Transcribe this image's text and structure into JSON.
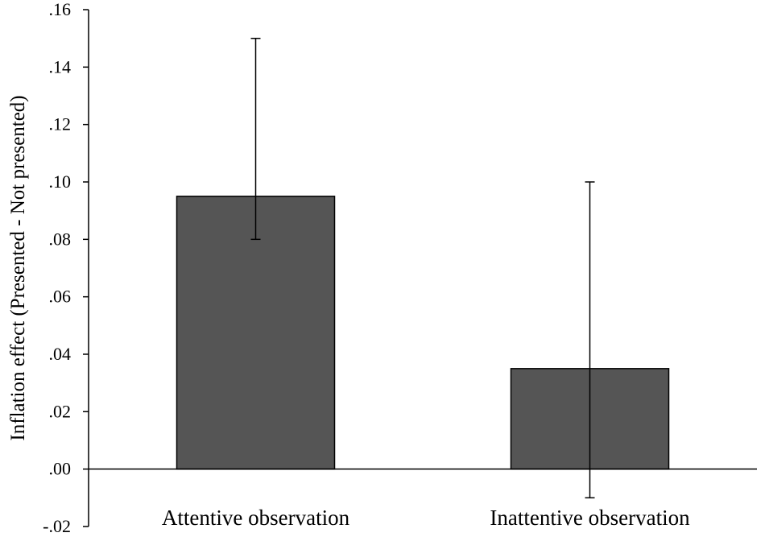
{
  "chart_data": {
    "type": "bar",
    "categories": [
      "Attentive  observation",
      "Inattentive  observation"
    ],
    "values": [
      0.095,
      0.035
    ],
    "error_bars": [
      {
        "low": 0.08,
        "high": 0.15
      },
      {
        "low": -0.01,
        "high": 0.1
      }
    ],
    "ylabel": "Inflation  effect (Presented - Not presented)",
    "ylim": [
      -0.02,
      0.16
    ],
    "yticks": [
      -0.02,
      0.0,
      0.02,
      0.04,
      0.06,
      0.08,
      0.1,
      0.12,
      0.14,
      0.16
    ],
    "ytick_labels": [
      "-.02",
      ".00",
      ".02",
      ".04",
      ".06",
      ".08",
      ".10",
      ".12",
      ".14",
      ".16"
    ],
    "grid": false,
    "bar_color": "#555555",
    "bar_edge_color": "#000000"
  }
}
